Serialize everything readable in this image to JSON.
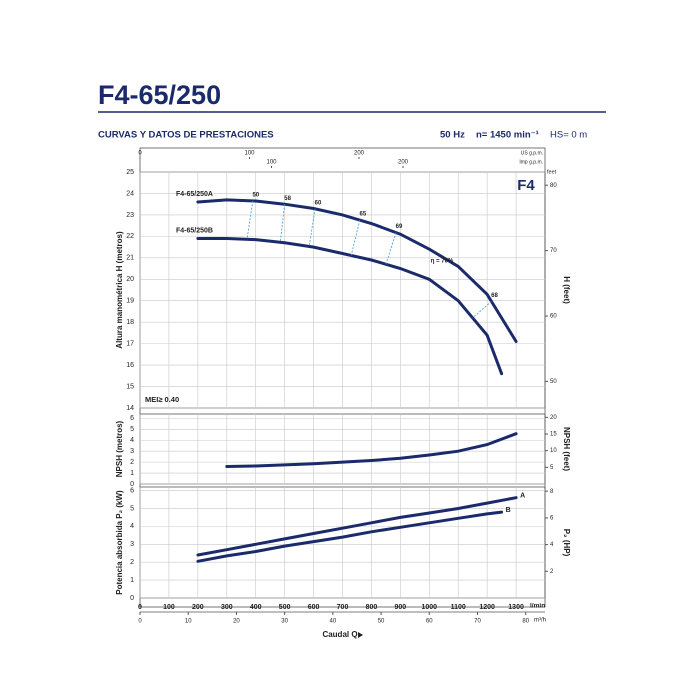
{
  "header": {
    "title": "F4-65/250",
    "subtitle": "CURVAS Y DATOS DE PRESTACIONES",
    "frequency": "50 Hz",
    "speed": "n= 1450 min⁻¹",
    "hs": "HS= 0 m"
  },
  "chart_data": [
    {
      "type": "line",
      "ylabel": "Altura manométrica H (metros)",
      "y2label": "H (feet)",
      "y2unit": "feet",
      "xlim": [
        0,
        1400
      ],
      "ylim": [
        14,
        25
      ],
      "yticks": [
        14,
        15,
        16,
        17,
        18,
        19,
        20,
        21,
        22,
        23,
        24,
        25
      ],
      "y2lim": [
        45.93,
        82.02
      ],
      "y2ticks": [
        50,
        60,
        70,
        80
      ],
      "top_axes": [
        {
          "label": "US g.p.m.",
          "lim": [
            0,
            369.84
          ],
          "ticks": [
            0,
            100,
            200
          ]
        },
        {
          "label": "Imp g.p.m.",
          "lim": [
            0,
            307.96
          ],
          "ticks": [
            100,
            200
          ]
        }
      ],
      "series": [
        {
          "name": "F4-65/250A",
          "color": "#1b2a6b",
          "x": [
            200,
            300,
            400,
            500,
            600,
            700,
            800,
            900,
            1000,
            1100,
            1200,
            1300
          ],
          "values": [
            23.6,
            23.7,
            23.65,
            23.5,
            23.3,
            23.0,
            22.6,
            22.1,
            21.4,
            20.6,
            19.3,
            17.1
          ]
        },
        {
          "name": "F4-65/250B",
          "color": "#1b2a6b",
          "x": [
            200,
            300,
            400,
            500,
            600,
            700,
            800,
            900,
            1000,
            1100,
            1200,
            1250
          ],
          "values": [
            21.9,
            21.9,
            21.85,
            21.7,
            21.5,
            21.2,
            20.9,
            20.5,
            20.0,
            19.0,
            17.4,
            15.6
          ]
        }
      ],
      "efficiency": {
        "color": "#3a9ad9",
        "values": [
          50,
          58,
          60,
          65,
          69,
          68
        ],
        "q_a": [
          390,
          500,
          605,
          760,
          885,
          1215
        ],
        "q_b": [
          370,
          485,
          585,
          730,
          850,
          1150
        ]
      },
      "annotations": {
        "eta": "η = 70%",
        "mei": "MEI≥ 0.40",
        "model": "F4"
      }
    },
    {
      "type": "line",
      "ylabel": "NPSH (metros)",
      "y2label": "NPSH (feet)",
      "xlim": [
        0,
        1400
      ],
      "ylim": [
        0,
        6.4
      ],
      "yticks": [
        0,
        1,
        2,
        3,
        4,
        5,
        6
      ],
      "y2lim": [
        0,
        21.0
      ],
      "y2ticks": [
        5,
        10,
        15,
        20
      ],
      "series": [
        {
          "color": "#1b2a6b",
          "x": [
            300,
            400,
            500,
            600,
            700,
            800,
            900,
            1000,
            1100,
            1200,
            1300
          ],
          "values": [
            1.6,
            1.65,
            1.75,
            1.85,
            2.0,
            2.15,
            2.35,
            2.65,
            3.0,
            3.6,
            4.6
          ]
        }
      ]
    },
    {
      "type": "line",
      "ylabel": "Potencia absorbida P₂ (kW)",
      "y2label": "P₂ (HP)",
      "xlabel": "Caudal Q",
      "xunit": "l/min",
      "xlim": [
        0,
        1400
      ],
      "xticks": [
        0,
        100,
        200,
        300,
        400,
        500,
        600,
        700,
        800,
        900,
        1000,
        1100,
        1200,
        1300
      ],
      "ylim": [
        0,
        6.2
      ],
      "yticks": [
        0,
        1,
        2,
        3,
        4,
        5,
        6
      ],
      "y2lim": [
        0,
        8.314
      ],
      "y2ticks": [
        2,
        4,
        6,
        8
      ],
      "bottom_axis": {
        "label": "m³/h",
        "lim": [
          0,
          84
        ],
        "ticks": [
          0,
          10,
          20,
          30,
          40,
          50,
          60,
          70,
          80
        ]
      },
      "series": [
        {
          "name": "A",
          "color": "#1b2a6b",
          "x": [
            200,
            300,
            400,
            500,
            600,
            700,
            800,
            900,
            1000,
            1100,
            1200,
            1300
          ],
          "values": [
            2.4,
            2.7,
            3.0,
            3.3,
            3.6,
            3.9,
            4.2,
            4.5,
            4.75,
            5.0,
            5.3,
            5.6
          ]
        },
        {
          "name": "B",
          "color": "#1b2a6b",
          "x": [
            200,
            300,
            400,
            500,
            600,
            700,
            800,
            900,
            1000,
            1100,
            1200,
            1250
          ],
          "values": [
            2.05,
            2.35,
            2.6,
            2.9,
            3.15,
            3.4,
            3.7,
            3.95,
            4.2,
            4.45,
            4.7,
            4.8
          ]
        }
      ]
    }
  ]
}
